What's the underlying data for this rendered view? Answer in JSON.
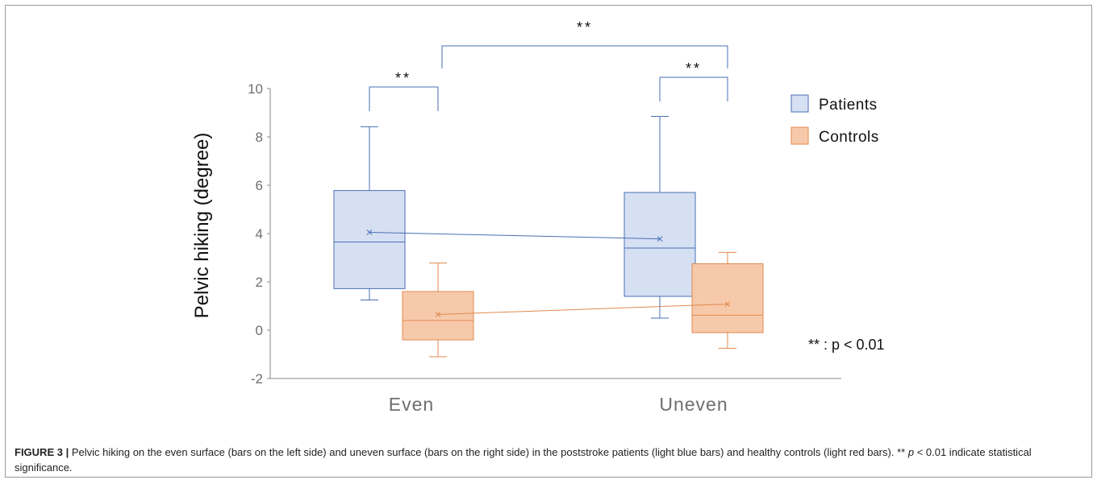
{
  "chart_data": {
    "type": "box",
    "ylabel": "Pelvic hiking (degree)",
    "ylim": [
      -2,
      10
    ],
    "yticks": [
      "10",
      "8",
      "6",
      "4",
      "2",
      "0",
      "-2"
    ],
    "categories": [
      "Even",
      "Uneven"
    ],
    "series": [
      {
        "name": "Patients",
        "color": "#4a6fb5",
        "fill": "#d6e0f3",
        "boxes": [
          {
            "min": 1.25,
            "q1": 1.72,
            "median": 3.65,
            "q3": 5.78,
            "max": 8.42,
            "mean": 4.05
          },
          {
            "min": 0.5,
            "q1": 1.4,
            "median": 3.4,
            "q3": 5.7,
            "max": 8.85,
            "mean": 3.78
          }
        ]
      },
      {
        "name": "Controls",
        "color": "#e08a4e",
        "fill": "#f7c9ab",
        "boxes": [
          {
            "min": -1.1,
            "q1": -0.4,
            "median": 0.4,
            "q3": 1.6,
            "max": 2.78,
            "mean": 0.65
          },
          {
            "min": -0.75,
            "q1": -0.1,
            "median": 0.62,
            "q3": 2.75,
            "max": 3.22,
            "mean": 1.08
          }
        ]
      }
    ],
    "significance": [
      "**",
      "**",
      "**"
    ],
    "annotation": "** : p < 0.01"
  },
  "caption": {
    "label": "FIGURE 3 |",
    "text1": "Pelvic hiking on the even surface (bars on the left side) and uneven surface (bars on the right side) in the poststroke patients (light blue bars) and healthy controls (light red bars).",
    "stars": "**",
    "p": "p",
    "text2": "< 0.01 indicate statistical significance."
  }
}
